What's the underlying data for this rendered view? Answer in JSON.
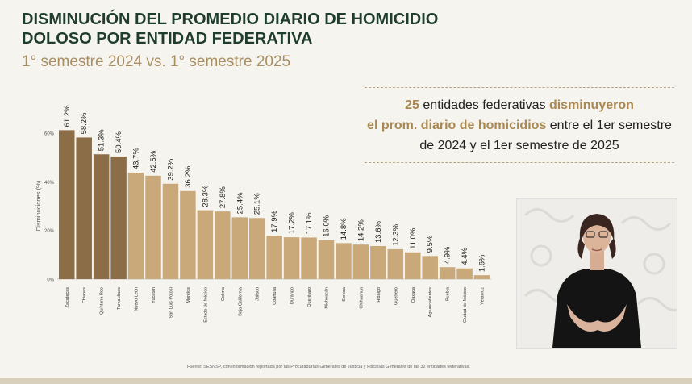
{
  "title_line1": "DISMINUCIÓN DEL PROMEDIO DIARIO DE HOMICIDIO",
  "title_line2": "DOLOSO POR ENTIDAD FEDERATIVA",
  "subtitle": "1° semestre 2024 vs. 1° semestre 2025",
  "callout": {
    "count": "25",
    "part1": "entidades federativas",
    "part2": "disminuyeron",
    "part3": "el prom. diario de homicidios",
    "part4": "entre el 1er semestre de 2024 y el 1er semestre de 2025"
  },
  "source": "Fuente: SESNSP, con información reportada por las Procuradurías Generales de Justicia y Fiscalías Generales de las 32 entidades federativas.",
  "colors": {
    "dark_bar": "#8b6d47",
    "light_bar": "#c9a97a",
    "green": "#1f3d2c",
    "gold": "#a98852"
  },
  "chart_data": {
    "type": "bar",
    "ylabel": "Disminuciones (%)",
    "ylim": [
      0,
      60
    ],
    "yticks": [
      0,
      20,
      40,
      60
    ],
    "ytick_labels": [
      "0%",
      "20%",
      "40%",
      "60%"
    ],
    "categories": [
      "Zacatecas",
      "Chiapas",
      "Quintana Roo",
      "Tamaulipas",
      "Nuevo León",
      "Yucatán",
      "San Luis Potosí",
      "Morelos",
      "Estado de México",
      "Colima",
      "Baja California",
      "Jalisco",
      "Coahuila",
      "Durango",
      "Querétaro",
      "Michoacán",
      "Sonora",
      "Chihuahua",
      "Hidalgo",
      "Guerrero",
      "Oaxaca",
      "Aguascalientes",
      "Puebla",
      "Ciudad de México",
      "Veracruz"
    ],
    "values": [
      61.2,
      58.2,
      51.3,
      50.4,
      43.7,
      42.5,
      39.2,
      36.2,
      28.3,
      27.8,
      25.4,
      25.1,
      17.9,
      17.2,
      17.1,
      16.0,
      14.8,
      14.2,
      13.6,
      12.3,
      11.0,
      9.5,
      4.9,
      4.4,
      1.6
    ],
    "value_labels": [
      "61.2%",
      "58.2%",
      "51.3%",
      "50.4%",
      "43.7%",
      "42.5%",
      "39.2%",
      "36.2%",
      "28.3%",
      "27.8%",
      "25.4%",
      "25.1%",
      "17.9%",
      "17.2%",
      "17.1%",
      "16.0%",
      "14.8%",
      "14.2%",
      "13.6%",
      "12.3%",
      "11.0%",
      "9.5%",
      "4.9%",
      "4.4%",
      "1.6%"
    ],
    "highlight_count": 4,
    "grid": false,
    "legend": "none"
  }
}
